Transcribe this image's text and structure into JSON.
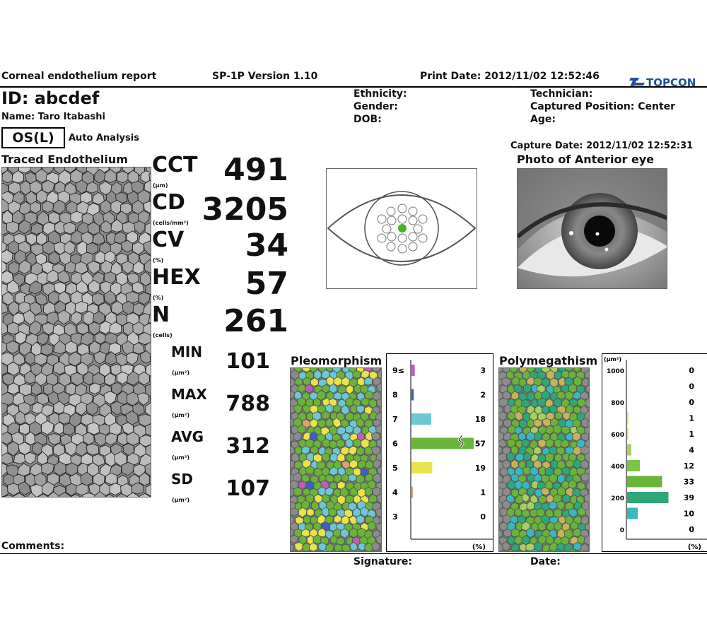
{
  "header": {
    "report_title": "Corneal endothelium report",
    "version": "SP-1P Version 1.10",
    "print_date": "Print Date: 2012/11/02 12:52:46",
    "brand": "TOPCON",
    "brand_color": "#1f4e9c"
  },
  "patient": {
    "id": "ID: abcdef",
    "name": "Name: Taro Itabashi",
    "ethnicity": "Ethnicity:",
    "gender": "Gender:",
    "dob": "DOB:",
    "technician": "Technician:",
    "captured_position": "Captured Position: Center",
    "age": "Age:"
  },
  "eye": {
    "side": "OS(L)",
    "analysis": "Auto Analysis",
    "capture_date": "Capture Date: 2012/11/02 12:52:31"
  },
  "sections": {
    "traced": "Traced Endothelium",
    "photo": "Photo of Anterior eye",
    "pleomorphism": "Pleomorphism",
    "polymegathism": "Polymegathism",
    "comments": "Comments:",
    "signature": "Signature:",
    "date": "Date:"
  },
  "metrics": [
    {
      "label": "CCT",
      "unit": "(μm)",
      "value": "491"
    },
    {
      "label": "CD",
      "unit": "(cells/mm²)",
      "value": "3205"
    },
    {
      "label": "CV",
      "unit": "(%)",
      "value": "34"
    },
    {
      "label": "HEX",
      "unit": "(%)",
      "value": "57"
    },
    {
      "label": "N",
      "unit": "(cells)",
      "value": "261"
    }
  ],
  "area_stats": [
    {
      "label": "MIN",
      "unit": "(μm²)",
      "value": "101"
    },
    {
      "label": "MAX",
      "unit": "(μm²)",
      "value": "788"
    },
    {
      "label": "AVG",
      "unit": "(μm²)",
      "value": "312"
    },
    {
      "label": "SD",
      "unit": "(μm²)",
      "value": "107"
    }
  ],
  "chart_data": [
    {
      "type": "bar",
      "orientation": "horizontal",
      "categories": [
        "9≤",
        "8",
        "7",
        "6",
        "5",
        "4",
        "3"
      ],
      "values": [
        3,
        2,
        18,
        57,
        19,
        1,
        0
      ],
      "colors": [
        "#c45bb8",
        "#3f5fc0",
        "#6cc8d2",
        "#6ab43a",
        "#e8e44a",
        "#e0a070",
        "#999999"
      ],
      "unit_label": "(%)",
      "axis_break": true
    },
    {
      "type": "bar",
      "orientation": "horizontal",
      "ylabel": "(μm²)",
      "yticks": [
        "1000",
        "800",
        "600",
        "400",
        "200",
        "0"
      ],
      "values": [
        0,
        0,
        0,
        1,
        1,
        4,
        12,
        33,
        39,
        10,
        0
      ],
      "colors": [
        "#e0d060",
        "#e0d060",
        "#e0d060",
        "#e8e070",
        "#e8e070",
        "#a8d060",
        "#7cc446",
        "#6ab43a",
        "#2ea878",
        "#3ab8c0",
        "#999999"
      ],
      "unit_label": "(%)"
    }
  ]
}
